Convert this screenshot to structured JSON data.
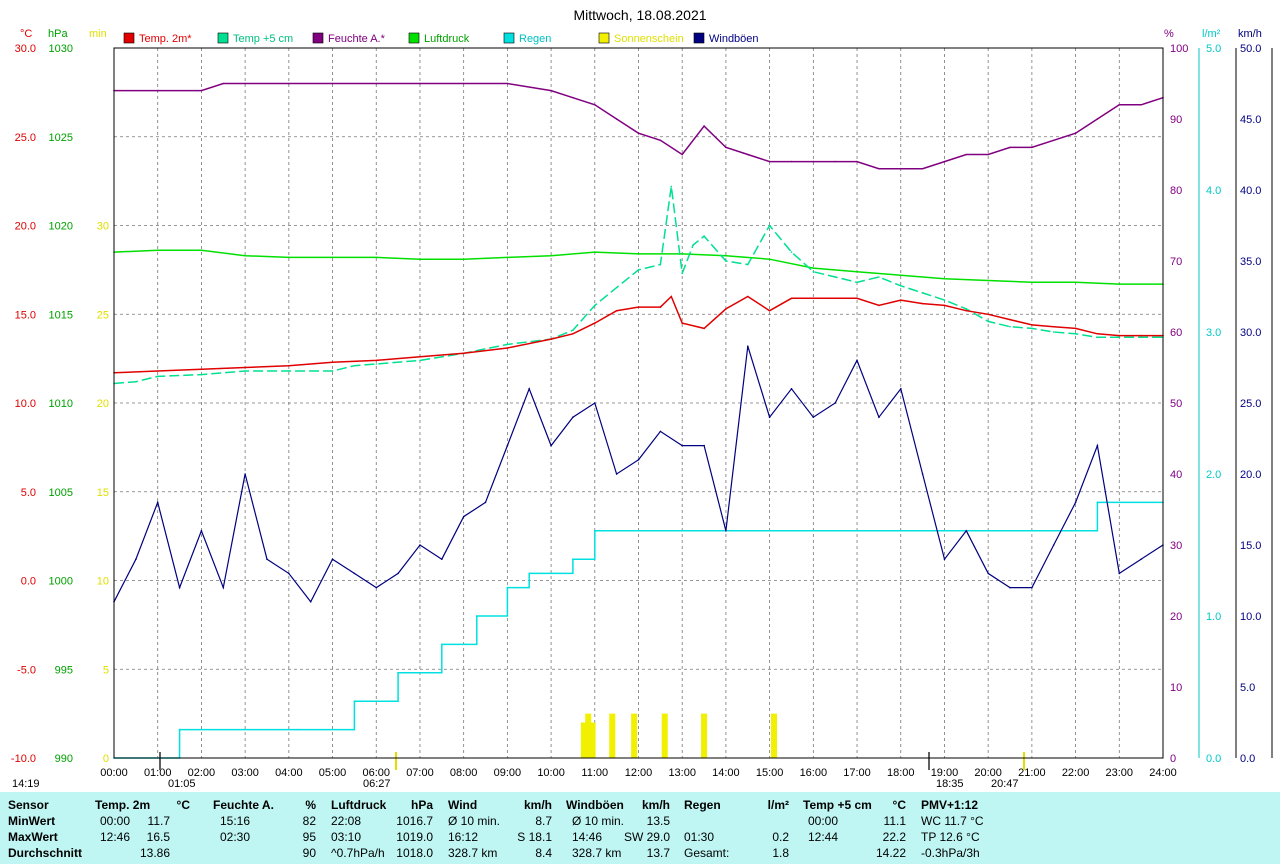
{
  "title": "Mittwoch, 18.08.2021",
  "legend": [
    {
      "label": "Temp. 2m*",
      "color": "#e00000",
      "text_color": "#e00000"
    },
    {
      "label": "Temp +5 cm",
      "color": "#00e090",
      "text_color": "#00c080"
    },
    {
      "label": "Feuchte A.*",
      "color": "#800080",
      "text_color": "#800080"
    },
    {
      "label": "Luftdruck",
      "color": "#00e000",
      "text_color": "#00a000"
    },
    {
      "label": "Regen",
      "color": "#00e0e0",
      "text_color": "#00c0c0"
    },
    {
      "label": "Sonnenschein",
      "color": "#f0f000",
      "text_color": "#e0e000"
    },
    {
      "label": "Windböen",
      "color": "#000080",
      "text_color": "#000080"
    }
  ],
  "axes": {
    "temp": {
      "unit": "°C",
      "color": "#e00000",
      "min": -10,
      "max": 30,
      "ticks": [
        "30.0",
        "25.0",
        "20.0",
        "15.0",
        "10.0",
        "5.0",
        "0.0",
        "-5.0",
        "-10.0"
      ]
    },
    "pressure": {
      "unit": "hPa",
      "color": "#00a000",
      "min": 990,
      "max": 1030,
      "ticks": [
        "1030",
        "1025",
        "1020",
        "1015",
        "1010",
        "1005",
        "1000",
        "995",
        "990"
      ]
    },
    "sun": {
      "unit": "min",
      "color": "#e0e000",
      "ticks": [
        "30",
        "25",
        "20",
        "15",
        "10",
        "5",
        "0"
      ]
    },
    "humidity": {
      "unit": "%",
      "color": "#800080",
      "ticks": [
        "100",
        "90",
        "80",
        "70",
        "60",
        "50",
        "40",
        "30",
        "20",
        "10",
        "0"
      ]
    },
    "rain": {
      "unit": "l/m²",
      "color": "#00c8c8",
      "ticks": [
        "5.0",
        "4.0",
        "3.0",
        "2.0",
        "1.0",
        "0.0"
      ]
    },
    "wind": {
      "unit": "km/h",
      "color": "#000080",
      "ticks": [
        "50.0",
        "45.0",
        "40.0",
        "35.0",
        "30.0",
        "25.0",
        "20.0",
        "15.0",
        "10.0",
        "5.0",
        "0.0"
      ]
    }
  },
  "x_ticks": [
    "00:00",
    "01:00",
    "02:00",
    "03:00",
    "04:00",
    "05:00",
    "06:00",
    "07:00",
    "08:00",
    "09:00",
    "10:00",
    "11:00",
    "12:00",
    "13:00",
    "14:00",
    "15:00",
    "16:00",
    "17:00",
    "18:00",
    "19:00",
    "20:00",
    "21:00",
    "22:00",
    "23:00",
    "24:00"
  ],
  "markers": [
    {
      "label": "14:19",
      "color": "#e0e000"
    },
    {
      "label": "01:05",
      "color": "#606060"
    },
    {
      "label": "06:27",
      "color": "#e0e000"
    },
    {
      "label": "18:35",
      "color": "#606060"
    },
    {
      "label": "20:47",
      "color": "#e0e000"
    }
  ],
  "chart_data": {
    "type": "line",
    "title": "Mittwoch, 18.08.2021",
    "x_unit": "hour",
    "xlim": [
      0,
      24
    ],
    "series": [
      {
        "name": "Temp. 2m*",
        "unit": "°C",
        "x": [
          0,
          1,
          2,
          3,
          4,
          5,
          6,
          7,
          8,
          9,
          10,
          10.5,
          11,
          11.5,
          12,
          12.5,
          12.75,
          13,
          13.5,
          14,
          14.5,
          15,
          15.5,
          16,
          16.5,
          17,
          17.5,
          18,
          18.5,
          19,
          19.5,
          20,
          20.5,
          21,
          21.5,
          22,
          22.5,
          23,
          23.5,
          24
        ],
        "y": [
          11.7,
          11.8,
          11.9,
          12.0,
          12.1,
          12.3,
          12.4,
          12.6,
          12.8,
          13.1,
          13.6,
          13.9,
          14.5,
          15.2,
          15.4,
          15.4,
          16.0,
          14.5,
          14.2,
          15.3,
          16.0,
          15.2,
          15.9,
          15.9,
          15.9,
          15.9,
          15.5,
          15.8,
          15.6,
          15.5,
          15.2,
          15.0,
          14.7,
          14.4,
          14.3,
          14.2,
          13.9,
          13.8,
          13.8,
          13.8
        ]
      },
      {
        "name": "Temp +5 cm",
        "unit": "°C",
        "x": [
          0,
          0.5,
          1,
          2,
          3,
          4,
          5,
          5.5,
          6,
          7,
          8,
          9,
          10,
          10.5,
          11,
          11.5,
          12,
          12.5,
          12.75,
          13,
          13.25,
          13.5,
          14,
          14.5,
          15,
          15.5,
          16,
          16.5,
          17,
          17.5,
          18,
          18.5,
          19,
          19.5,
          20,
          20.5,
          21,
          21.5,
          22,
          22.5,
          23,
          23.5,
          24
        ],
        "y": [
          11.1,
          11.2,
          11.5,
          11.6,
          11.8,
          11.8,
          11.8,
          12.1,
          12.2,
          12.4,
          12.8,
          13.3,
          13.6,
          14.1,
          15.5,
          16.5,
          17.5,
          17.8,
          22.2,
          17.3,
          18.9,
          19.4,
          18.0,
          17.8,
          20.0,
          18.5,
          17.4,
          17.1,
          16.8,
          17.1,
          16.6,
          16.2,
          15.8,
          15.3,
          14.6,
          14.3,
          14.2,
          14.0,
          13.9,
          13.7,
          13.7,
          13.7,
          13.7
        ]
      },
      {
        "name": "Feuchte A.*",
        "unit": "%",
        "x": [
          0,
          1,
          2,
          2.5,
          3,
          4,
          5,
          6,
          7,
          8,
          9,
          10,
          10.5,
          11,
          11.5,
          12,
          12.5,
          13,
          13.5,
          14,
          14.5,
          15,
          15.5,
          16,
          16.5,
          17,
          17.5,
          18,
          18.5,
          19,
          19.5,
          20,
          20.5,
          21,
          21.5,
          22,
          22.5,
          23,
          23.5,
          24
        ],
        "y": [
          94,
          94,
          94,
          95,
          95,
          95,
          95,
          95,
          95,
          95,
          95,
          94,
          93,
          92,
          90,
          88,
          87,
          85,
          89,
          86,
          85,
          84,
          84,
          84,
          84,
          84,
          83,
          83,
          83,
          84,
          85,
          85,
          86,
          86,
          87,
          88,
          90,
          92,
          92,
          93
        ]
      },
      {
        "name": "Luftdruck",
        "unit": "hPa",
        "x": [
          0,
          1,
          2,
          3,
          4,
          5,
          6,
          7,
          8,
          9,
          10,
          11,
          12,
          13,
          14,
          15,
          16,
          17,
          18,
          19,
          20,
          21,
          22,
          23,
          24
        ],
        "y": [
          1018.5,
          1018.6,
          1018.6,
          1018.3,
          1018.2,
          1018.2,
          1018.2,
          1018.1,
          1018.1,
          1018.2,
          1018.3,
          1018.5,
          1018.4,
          1018.4,
          1018.3,
          1018.1,
          1017.6,
          1017.4,
          1017.2,
          1017.0,
          1016.9,
          1016.8,
          1016.8,
          1016.7,
          1016.7
        ]
      },
      {
        "name": "Regen",
        "unit": "l/m²",
        "step": true,
        "x": [
          0,
          1.5,
          4.2,
          5.5,
          6.5,
          7.5,
          8.3,
          9.0,
          9.5,
          10.5,
          11.0,
          13.5,
          14.0,
          17.0,
          18.0,
          22.5,
          24
        ],
        "y": [
          0,
          0.2,
          0.2,
          0.4,
          0.6,
          0.8,
          1.0,
          1.2,
          1.3,
          1.4,
          1.6,
          1.6,
          1.6,
          1.6,
          1.6,
          1.8,
          1.8
        ]
      },
      {
        "name": "Sonnenschein",
        "unit": "min",
        "type": "bar",
        "x": [
          10.75,
          10.85,
          10.95,
          11.4,
          11.9,
          12.6,
          13.5,
          15.1
        ],
        "y": [
          2.0,
          2.5,
          2.0,
          2.5,
          2.5,
          2.5,
          2.5,
          2.5
        ]
      },
      {
        "name": "Windböen",
        "unit": "km/h",
        "x": [
          0,
          0.5,
          1,
          1.5,
          2,
          2.5,
          3,
          3.5,
          4,
          4.5,
          5,
          5.5,
          6,
          6.5,
          7,
          7.5,
          8,
          8.5,
          9,
          9.5,
          10,
          10.5,
          11,
          11.5,
          12,
          12.5,
          13,
          13.5,
          14,
          14.5,
          15,
          15.5,
          16,
          16.5,
          17,
          17.5,
          18,
          18.5,
          19,
          19.5,
          20,
          20.5,
          21,
          21.5,
          22,
          22.5,
          23,
          23.5,
          24
        ],
        "y": [
          11,
          14,
          18,
          12,
          16,
          12,
          20,
          14,
          13,
          11,
          14,
          13,
          12,
          13,
          15,
          14,
          17,
          18,
          22,
          26,
          22,
          24,
          25,
          20,
          21,
          23,
          22,
          22,
          16,
          29,
          24,
          26,
          24,
          25,
          28,
          24,
          26,
          20,
          14,
          16,
          13,
          12,
          12,
          15,
          18,
          22,
          13,
          14,
          15
        ]
      }
    ]
  },
  "table": {
    "header": {
      "sensor": "Sensor",
      "temp": "Temp. 2m",
      "temp_u": "°C",
      "hum": "Feuchte A.",
      "hum_u": "%",
      "press": "Luftdruck",
      "press_u": "hPa",
      "wind": "Wind",
      "wind_u": "km/h",
      "gust": "Windböen",
      "gust_u": "km/h",
      "rain": "Regen",
      "rain_u": "l/m²",
      "t5": "Temp +5 cm",
      "t5_u": "°C",
      "pmv": "PMV+1:12"
    },
    "rows": [
      {
        "label": "MinWert",
        "temp_t": "00:00",
        "temp_v": "11.7",
        "hum_t": "15:16",
        "hum_v": "82",
        "press_t": "22:08",
        "press_v": "1016.7",
        "wind_t": "Ø 10 min.",
        "wind_v": "8.7",
        "gust_t": "Ø 10 min.",
        "gust_v": "13.5",
        "rain_t": "",
        "rain_v": "",
        "t5_t": "00:00",
        "t5_v": "11.1",
        "pmv": "WC 11.7 °C"
      },
      {
        "label": "MaxWert",
        "temp_t": "12:46",
        "temp_v": "16.5",
        "hum_t": "02:30",
        "hum_v": "95",
        "press_t": "03:10",
        "press_v": "1019.0",
        "wind_t": "16:12",
        "wind_v": "S 18.1",
        "gust_t": "14:46",
        "gust_v": "SW 29.0",
        "rain_t": "01:30",
        "rain_v": "0.2",
        "t5_t": "12:44",
        "t5_v": "22.2",
        "pmv": "TP 12.6 °C"
      },
      {
        "label": "Durchschnitt",
        "temp_t": "",
        "temp_v": "13.86",
        "hum_t": "",
        "hum_v": "90",
        "press_t": "^0.7hPa/h",
        "press_v": "1018.0",
        "wind_t": "328.7 km",
        "wind_v": "8.4",
        "gust_t": "328.7 km",
        "gust_v": "13.7",
        "rain_t": "Gesamt:",
        "rain_v": "1.8",
        "t5_t": "",
        "t5_v": "14.22",
        "pmv": "-0.3hPa/3h"
      }
    ]
  }
}
